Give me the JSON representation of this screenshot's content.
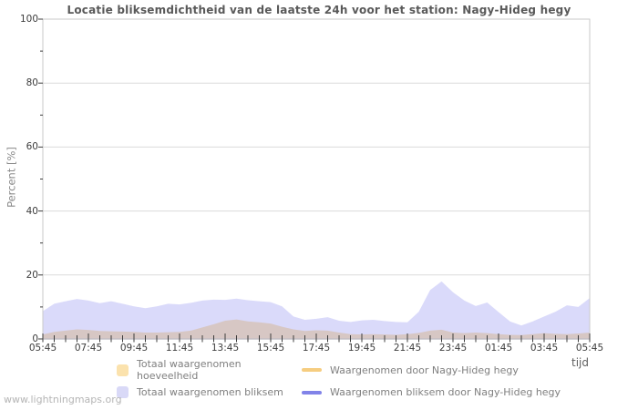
{
  "page": {
    "watermark": "www.lightningmaps.org"
  },
  "chart": {
    "title": "Locatie bliksemdichtheid van de laatste 24h voor het station: Nagy-Hideg hegy",
    "ylabel": "Percent  [%]",
    "xlabel": "tijd",
    "colors": {
      "grid": "#dcdcdc",
      "border": "#c9c9c9",
      "tick": "#3c3c3c",
      "area_hoeveelheid": "#fbe2ad",
      "area_bliksem_overlay": "rgba(150,150,242,0.35)",
      "area_bliksem_display": "#d9d9f7",
      "line_station_hoeveelheid": "#f6cd80",
      "line_station_bliksem": "#8183e8"
    }
  },
  "chart_data": {
    "type": "area",
    "title": "Locatie bliksemdichtheid van de laatste 24h voor het station: Nagy-Hideg hegy",
    "xlabel": "tijd",
    "ylabel": "Percent  [%]",
    "ylim": [
      0,
      100
    ],
    "y_major_ticks": [
      0,
      20,
      40,
      60,
      80,
      100
    ],
    "y_minor_ticks": [
      10,
      30,
      50,
      70,
      90
    ],
    "grid": true,
    "legend_position": "bottom",
    "x": [
      "05:45",
      "06:15",
      "06:45",
      "07:15",
      "07:45",
      "08:15",
      "08:45",
      "09:15",
      "09:45",
      "10:15",
      "10:45",
      "11:15",
      "11:45",
      "12:15",
      "12:45",
      "13:15",
      "13:45",
      "14:15",
      "14:45",
      "15:15",
      "15:45",
      "16:15",
      "16:45",
      "17:15",
      "17:45",
      "18:15",
      "18:45",
      "19:15",
      "19:45",
      "20:15",
      "20:45",
      "21:15",
      "21:45",
      "22:15",
      "22:45",
      "23:15",
      "23:45",
      "00:15",
      "00:45",
      "01:15",
      "01:45",
      "02:15",
      "02:45",
      "03:15",
      "03:45",
      "04:15",
      "04:45",
      "05:15",
      "05:45"
    ],
    "x_major_tick_labels": [
      "05:45",
      "07:45",
      "09:45",
      "11:45",
      "13:45",
      "15:45",
      "17:45",
      "19:45",
      "21:45",
      "23:45",
      "01:45",
      "03:45",
      "05:45"
    ],
    "series": [
      {
        "name": "Totaal waargenomen hoeveelheid",
        "kind": "area",
        "fill": "#fbe2ad",
        "swatch": "#fbe2ad",
        "values": [
          1.4,
          2.2,
          2.6,
          3.0,
          2.8,
          2.5,
          2.4,
          2.3,
          2.2,
          2.0,
          2.0,
          2.1,
          2.2,
          2.6,
          3.6,
          4.6,
          5.7,
          6.1,
          5.5,
          5.2,
          4.8,
          3.8,
          3.0,
          2.5,
          2.7,
          2.6,
          2.0,
          1.5,
          1.4,
          1.5,
          1.4,
          1.3,
          1.5,
          1.9,
          2.6,
          2.9,
          2.0,
          1.8,
          2.0,
          1.8,
          1.5,
          1.3,
          1.2,
          1.5,
          1.8,
          1.6,
          1.5,
          1.7,
          2.0
        ]
      },
      {
        "name": "Waargenomen door Nagy-Hideg hegy",
        "kind": "line",
        "stroke": "#f6cd80",
        "swatch": "#f6cd80",
        "values": [
          0,
          0,
          0,
          0,
          0,
          0,
          0,
          0,
          0,
          0,
          0,
          0,
          0,
          0,
          0,
          0,
          0,
          0,
          0,
          0,
          0,
          0,
          0,
          0,
          0,
          0,
          0,
          0,
          0,
          0,
          0,
          0,
          0,
          0,
          0,
          0,
          0,
          0,
          0,
          0,
          0,
          0,
          0,
          0,
          0,
          0,
          0,
          0,
          0
        ]
      },
      {
        "name": "Totaal waargenomen bliksem",
        "kind": "area",
        "fill": "rgba(150,150,242,0.35)",
        "swatch": "#d9d9f7",
        "values": [
          8.7,
          11.0,
          11.8,
          12.5,
          12.0,
          11.2,
          11.8,
          11.0,
          10.2,
          9.6,
          10.2,
          11.0,
          10.8,
          11.3,
          12.0,
          12.3,
          12.2,
          12.6,
          12.1,
          11.8,
          11.5,
          10.2,
          7.0,
          6.0,
          6.3,
          6.8,
          5.7,
          5.3,
          5.8,
          6.0,
          5.6,
          5.3,
          5.2,
          8.5,
          15.3,
          18.0,
          14.6,
          12.0,
          10.3,
          11.4,
          8.4,
          5.5,
          4.2,
          5.5,
          7.0,
          8.5,
          10.5,
          10.0,
          12.8
        ]
      },
      {
        "name": "Waargenomen bliksem door Nagy-Hideg hegy",
        "kind": "line",
        "stroke": "#8183e8",
        "swatch": "#8183e8",
        "values": [
          0,
          0,
          0,
          0,
          0,
          0,
          0,
          0,
          0,
          0,
          0,
          0,
          0,
          0,
          0,
          0,
          0,
          0,
          0,
          0,
          0,
          0,
          0,
          0,
          0,
          0,
          0,
          0,
          0,
          0,
          0,
          0,
          0,
          0,
          0,
          0,
          0,
          0,
          0,
          0,
          0,
          0,
          0,
          0,
          0,
          0,
          0,
          0,
          0
        ]
      }
    ]
  }
}
